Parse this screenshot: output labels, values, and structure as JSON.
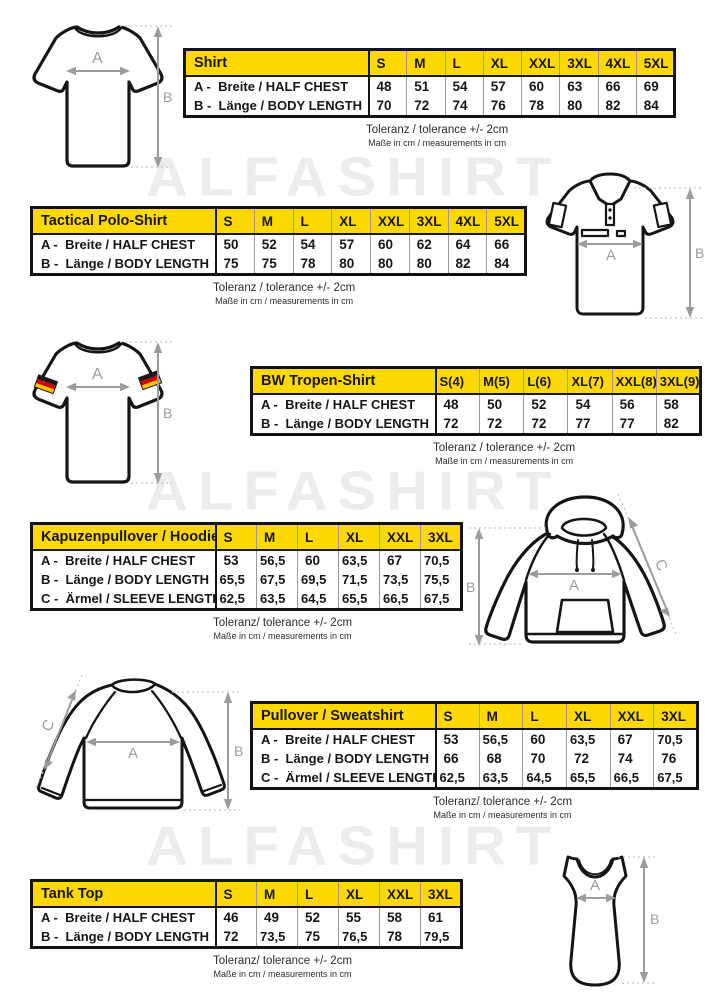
{
  "watermark": {
    "text": "ALFASHIRT"
  },
  "measure_labels": {
    "a": "A",
    "b": "B",
    "c": "C"
  },
  "colors": {
    "header_yellow": "#FFD800",
    "table_border": "#131313",
    "arrow_gray": "#9C9C9C",
    "watermark_gray": "#ECECEC",
    "flag_black": "#1A1A1A",
    "flag_red": "#D40000",
    "flag_gold": "#FFC400"
  },
  "tables": [
    {
      "key": "shirt",
      "title": "Shirt",
      "sizes": [
        "S",
        "M",
        "L",
        "XL",
        "XXL",
        "3XL",
        "4XL",
        "5XL"
      ],
      "rows": [
        {
          "label": "A -  Breite / HALF CHEST",
          "values": [
            "48",
            "51",
            "54",
            "57",
            "60",
            "63",
            "66",
            "69"
          ]
        },
        {
          "label": "B -  Länge / BODY LENGTH",
          "values": [
            "70",
            "72",
            "74",
            "76",
            "78",
            "80",
            "82",
            "84"
          ]
        }
      ],
      "tolerance": "Toleranz / tolerance +/- 2cm",
      "note": "Maße in cm / measurements in cm"
    },
    {
      "key": "tactical-polo-shirt",
      "title": "Tactical Polo-Shirt",
      "sizes": [
        "S",
        "M",
        "L",
        "XL",
        "XXL",
        "3XL",
        "4XL",
        "5XL"
      ],
      "rows": [
        {
          "label": "A -  Breite / HALF CHEST",
          "values": [
            "50",
            "52",
            "54",
            "57",
            "60",
            "62",
            "64",
            "66"
          ]
        },
        {
          "label": "B -  Länge / BODY LENGTH",
          "values": [
            "75",
            "75",
            "78",
            "80",
            "80",
            "80",
            "82",
            "84"
          ]
        }
      ],
      "tolerance": "Toleranz / tolerance +/- 2cm",
      "note": "Maße in cm / measurements in cm"
    },
    {
      "key": "bw-tropen-shirt",
      "title": "BW Tropen-Shirt",
      "sizes": [
        "S(4)",
        "M(5)",
        "L(6)",
        "XL(7)",
        "XXL(8)",
        "3XL(9)"
      ],
      "rows": [
        {
          "label": "A -  Breite / HALF CHEST",
          "values": [
            "48",
            "50",
            "52",
            "54",
            "56",
            "58"
          ]
        },
        {
          "label": "B -  Länge / BODY LENGTH",
          "values": [
            "72",
            "72",
            "72",
            "77",
            "77",
            "82"
          ]
        }
      ],
      "tolerance": "Toleranz / tolerance +/- 2cm",
      "note": "Maße in cm / measurements in cm"
    },
    {
      "key": "kapuzenpullover-hoodie",
      "title": "Kapuzenpullover / Hoodie",
      "sizes": [
        "S",
        "M",
        "L",
        "XL",
        "XXL",
        "3XL"
      ],
      "rows": [
        {
          "label": "A -  Breite / HALF CHEST",
          "values": [
            "53",
            "56,5",
            "60",
            "63,5",
            "67",
            "70,5"
          ]
        },
        {
          "label": "B -  Länge / BODY LENGTH",
          "values": [
            "65,5",
            "67,5",
            "69,5",
            "71,5",
            "73,5",
            "75,5"
          ]
        },
        {
          "label": "C -  Ärmel / SLEEVE LENGTH",
          "values": [
            "62,5",
            "63,5",
            "64,5",
            "65,5",
            "66,5",
            "67,5"
          ]
        }
      ],
      "tolerance": "Toleranz/ tolerance +/- 2cm",
      "note": "Maße in cm / measurements in cm"
    },
    {
      "key": "pullover-sweatshirt",
      "title": "Pullover / Sweatshirt",
      "sizes": [
        "S",
        "M",
        "L",
        "XL",
        "XXL",
        "3XL"
      ],
      "rows": [
        {
          "label": "A -  Breite / HALF CHEST",
          "values": [
            "53",
            "56,5",
            "60",
            "63,5",
            "67",
            "70,5"
          ]
        },
        {
          "label": "B -  Länge / BODY LENGTH",
          "values": [
            "66",
            "68",
            "70",
            "72",
            "74",
            "76"
          ]
        },
        {
          "label": "C -  Ärmel / SLEEVE LENGTH",
          "values": [
            "62,5",
            "63,5",
            "64,5",
            "65,5",
            "66,5",
            "67,5"
          ]
        }
      ],
      "tolerance": "Toleranz/ tolerance +/- 2cm",
      "note": "Maße in cm / measurements in cm"
    },
    {
      "key": "tank-top",
      "title": "Tank Top",
      "sizes": [
        "S",
        "M",
        "L",
        "XL",
        "XXL",
        "3XL"
      ],
      "rows": [
        {
          "label": "A -  Breite / HALF CHEST",
          "values": [
            "46",
            "49",
            "52",
            "55",
            "58",
            "61"
          ]
        },
        {
          "label": "B -  Länge / BODY LENGTH",
          "values": [
            "72",
            "73,5",
            "75",
            "76,5",
            "78",
            "79,5"
          ]
        }
      ],
      "tolerance": "Toleranz/ tolerance +/- 2cm",
      "note": "Maße in cm / measurements in cm"
    }
  ]
}
